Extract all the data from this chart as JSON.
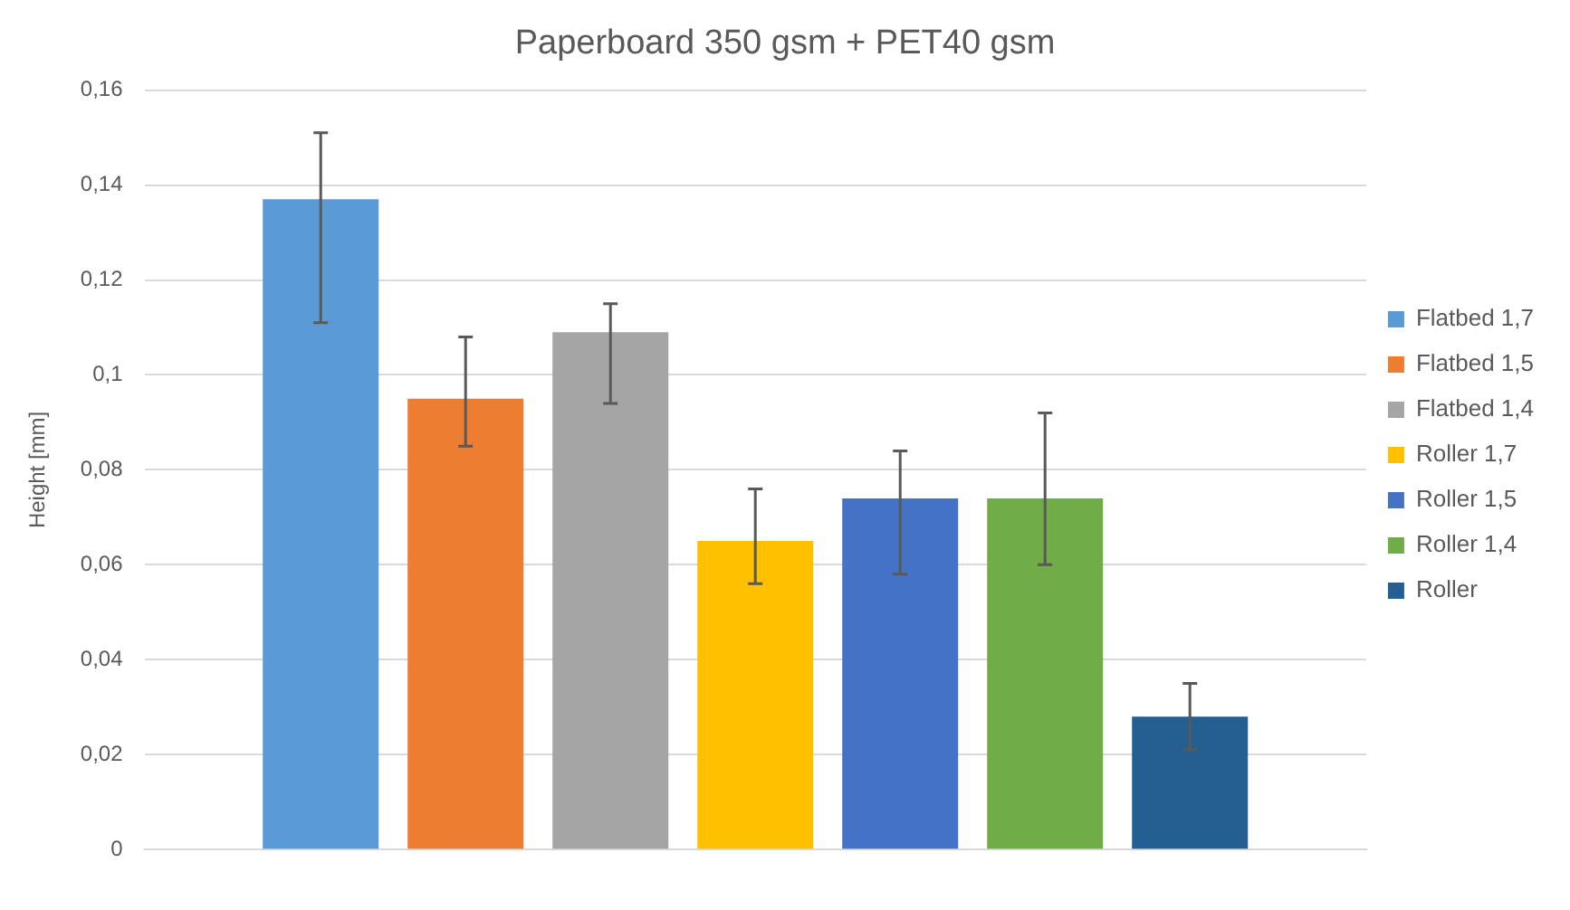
{
  "chart_data": {
    "type": "bar",
    "title": "Paperboard 350 gsm + PET40 gsm",
    "ylabel": "Height [mm]",
    "categories": [
      null
    ],
    "series": [
      {
        "name": "Flatbed 1,7",
        "color": "#5b9bd5",
        "values": [
          0.137
        ],
        "errors": [
          [
            0.111,
            0.151
          ]
        ]
      },
      {
        "name": "Flatbed 1,5",
        "color": "#ed7d31",
        "values": [
          0.095
        ],
        "errors": [
          [
            0.085,
            0.108
          ]
        ]
      },
      {
        "name": "Flatbed 1,4",
        "color": "#a5a5a5",
        "values": [
          0.109
        ],
        "errors": [
          [
            0.094,
            0.115
          ]
        ]
      },
      {
        "name": "Roller 1,7",
        "color": "#ffc000",
        "values": [
          0.065
        ],
        "errors": [
          [
            0.056,
            0.076
          ]
        ]
      },
      {
        "name": "Roller 1,5",
        "color": "#4472c4",
        "values": [
          0.074
        ],
        "errors": [
          [
            0.058,
            0.084
          ]
        ]
      },
      {
        "name": "Roller 1,4",
        "color": "#70ad47",
        "values": [
          0.074
        ],
        "errors": [
          [
            0.06,
            0.092
          ]
        ]
      },
      {
        "name": "Roller",
        "color": "#255e91",
        "values": [
          0.028
        ],
        "errors": [
          [
            0.021,
            0.035
          ]
        ]
      }
    ],
    "ylim": [
      0,
      0.16
    ],
    "yticks": [
      0,
      {
        "value": 0.02,
        "label": "0,02"
      },
      {
        "value": 0.04,
        "label": "0,04"
      },
      {
        "value": 0.06,
        "label": "0,06"
      },
      {
        "value": 0.08,
        "label": "0,08"
      },
      {
        "value": 0.1,
        "label": "0,1"
      },
      {
        "value": 0.12,
        "label": "0,12"
      },
      {
        "value": 0.14,
        "label": "0,14"
      },
      {
        "value": 0.16,
        "label": "0,16"
      }
    ],
    "grid": "y",
    "legend": "right"
  }
}
